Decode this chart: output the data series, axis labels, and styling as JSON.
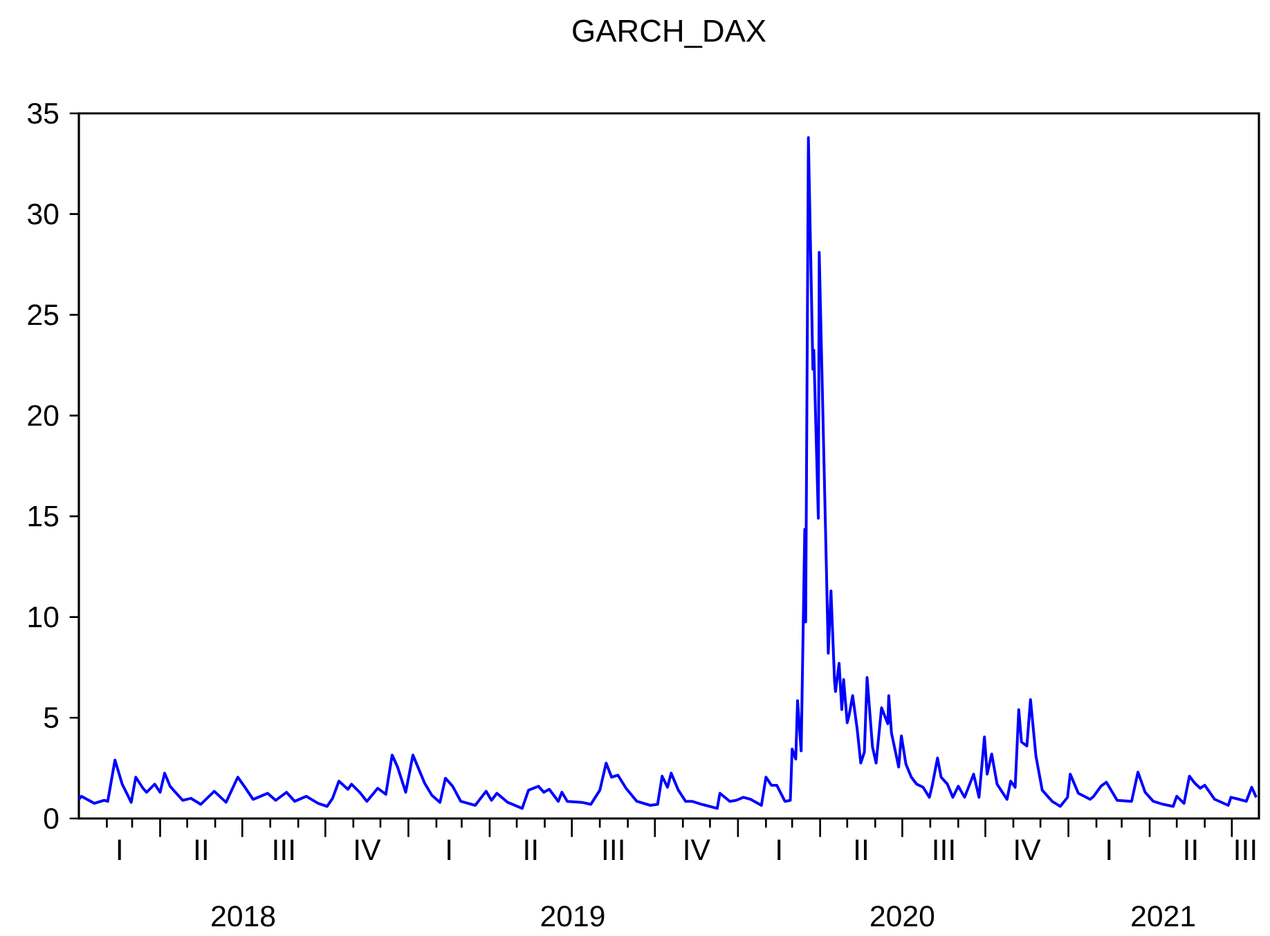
{
  "chart_data": {
    "type": "line",
    "title": "GARCH_DAX",
    "color": "#0000ff",
    "xlim": [
      "2018-01-01",
      "2021-07-31"
    ],
    "ylim": [
      0,
      35
    ],
    "yticks": [
      0,
      5,
      10,
      15,
      20,
      25,
      30,
      35
    ],
    "xticks": [
      {
        "value": "2018-02-01",
        "label": null
      },
      {
        "value": "2018-03-01",
        "label": null
      },
      {
        "value": "2018-04-01",
        "label": null
      },
      {
        "value": "2018-05-01",
        "label": null
      },
      {
        "value": "2018-06-01",
        "label": null
      },
      {
        "value": "2018-07-01",
        "label": null
      },
      {
        "value": "2018-08-01",
        "label": null
      },
      {
        "value": "2018-09-01",
        "label": null
      },
      {
        "value": "2018-10-01",
        "label": null
      },
      {
        "value": "2018-11-01",
        "label": null
      },
      {
        "value": "2018-12-01",
        "label": null
      },
      {
        "value": "2019-01-01",
        "label": null
      },
      {
        "value": "2019-02-01",
        "label": null
      },
      {
        "value": "2019-03-01",
        "label": null
      },
      {
        "value": "2019-04-01",
        "label": null
      },
      {
        "value": "2019-05-01",
        "label": null
      },
      {
        "value": "2019-06-01",
        "label": null
      },
      {
        "value": "2019-07-01",
        "label": null
      },
      {
        "value": "2019-08-01",
        "label": null
      },
      {
        "value": "2019-09-01",
        "label": null
      },
      {
        "value": "2019-10-01",
        "label": null
      },
      {
        "value": "2019-11-01",
        "label": null
      },
      {
        "value": "2019-12-01",
        "label": null
      },
      {
        "value": "2020-01-01",
        "label": null
      },
      {
        "value": "2020-02-01",
        "label": null
      },
      {
        "value": "2020-03-01",
        "label": null
      },
      {
        "value": "2020-04-01",
        "label": null
      },
      {
        "value": "2020-05-01",
        "label": null
      },
      {
        "value": "2020-06-01",
        "label": null
      },
      {
        "value": "2020-07-01",
        "label": null
      },
      {
        "value": "2020-08-01",
        "label": null
      },
      {
        "value": "2020-09-01",
        "label": null
      },
      {
        "value": "2020-10-01",
        "label": null
      },
      {
        "value": "2020-11-01",
        "label": null
      },
      {
        "value": "2020-12-01",
        "label": null
      },
      {
        "value": "2021-01-01",
        "label": null
      },
      {
        "value": "2021-02-01",
        "label": null
      },
      {
        "value": "2021-03-01",
        "label": null
      },
      {
        "value": "2021-04-01",
        "label": null
      },
      {
        "value": "2021-05-01",
        "label": null
      },
      {
        "value": "2021-06-01",
        "label": null
      },
      {
        "value": "2021-07-01",
        "label": null
      },
      {
        "value": "2018-07-02",
        "label": "2018"
      },
      {
        "value": "2019-07-02",
        "label": "2019"
      },
      {
        "value": "2020-07-01",
        "label": "2020"
      },
      {
        "value": "2021-04-16",
        "label": "2021"
      }
    ],
    "annotations": [
      "I",
      "II",
      "III",
      "IV",
      "I",
      "II",
      "III",
      "IV",
      "I",
      "II",
      "III",
      "IV",
      "I",
      "II",
      "III"
    ],
    "x": [
      "2018-01-01",
      "2018-01-04",
      "2018-01-18",
      "2018-01-29",
      "2018-02-02",
      "2018-02-10",
      "2018-02-18",
      "2018-02-28",
      "2018-03-05",
      "2018-03-13",
      "2018-03-17",
      "2018-03-26",
      "2018-04-01",
      "2018-04-06",
      "2018-04-12",
      "2018-04-26",
      "2018-05-05",
      "2018-05-16",
      "2018-05-31",
      "2018-06-13",
      "2018-06-26",
      "2018-07-04",
      "2018-07-13",
      "2018-07-29",
      "2018-08-07",
      "2018-08-19",
      "2018-08-28",
      "2018-09-10",
      "2018-09-23",
      "2018-10-03",
      "2018-10-09",
      "2018-10-16",
      "2018-10-26",
      "2018-10-30",
      "2018-11-08",
      "2018-11-16",
      "2018-11-28",
      "2018-12-07",
      "2018-12-14",
      "2018-12-20",
      "2018-12-29",
      "2019-01-06",
      "2019-01-12",
      "2019-01-19",
      "2019-01-27",
      "2019-02-05",
      "2019-02-11",
      "2019-02-19",
      "2019-02-28",
      "2019-03-16",
      "2019-03-28",
      "2019-04-03",
      "2019-04-09",
      "2019-04-21",
      "2019-05-07",
      "2019-05-14",
      "2019-05-25",
      "2019-05-31",
      "2019-06-06",
      "2019-06-16",
      "2019-06-20",
      "2019-06-26",
      "2019-07-12",
      "2019-07-22",
      "2019-08-01",
      "2019-08-08",
      "2019-08-14",
      "2019-08-21",
      "2019-08-30",
      "2019-09-11",
      "2019-09-26",
      "2019-10-04",
      "2019-10-09",
      "2019-10-15",
      "2019-10-19",
      "2019-10-27",
      "2019-11-04",
      "2019-11-11",
      "2019-11-22",
      "2019-12-09",
      "2019-12-12",
      "2019-12-23",
      "2019-12-30",
      "2020-01-07",
      "2020-01-15",
      "2020-01-27",
      "2020-02-01",
      "2020-02-07",
      "2020-02-13",
      "2020-02-22",
      "2020-02-28",
      "2020-03-01",
      "2020-03-05",
      "2020-03-07",
      "2020-03-11",
      "2020-03-15",
      "2020-03-16",
      "2020-03-19",
      "2020-03-24",
      "2020-03-25",
      "2020-03-30",
      "2020-03-31",
      "2020-04-08",
      "2020-04-10",
      "2020-04-13",
      "2020-04-17",
      "2020-04-18",
      "2020-04-22",
      "2020-04-25",
      "2020-04-27",
      "2020-05-01",
      "2020-05-03",
      "2020-05-07",
      "2020-05-12",
      "2020-05-16",
      "2020-05-20",
      "2020-05-23",
      "2020-05-29",
      "2020-06-02",
      "2020-06-08",
      "2020-06-15",
      "2020-06-16",
      "2020-06-19",
      "2020-06-27",
      "2020-06-30",
      "2020-07-05",
      "2020-07-11",
      "2020-07-17",
      "2020-07-24",
      "2020-07-31",
      "2020-08-03",
      "2020-08-09",
      "2020-08-13",
      "2020-08-20",
      "2020-08-26",
      "2020-09-01",
      "2020-09-08",
      "2020-09-18",
      "2020-09-24",
      "2020-09-30",
      "2020-10-03",
      "2020-10-08",
      "2020-10-14",
      "2020-10-25",
      "2020-10-29",
      "2020-11-03",
      "2020-11-07",
      "2020-11-10",
      "2020-11-16",
      "2020-11-20",
      "2020-11-26",
      "2020-12-03",
      "2020-12-14",
      "2020-12-23",
      "2020-12-31",
      "2021-01-03",
      "2021-01-12",
      "2021-01-25",
      "2021-01-29",
      "2021-02-06",
      "2021-02-12",
      "2021-02-24",
      "2021-03-12",
      "2021-03-19",
      "2021-03-27",
      "2021-04-05",
      "2021-04-16",
      "2021-04-27",
      "2021-05-01",
      "2021-05-09",
      "2021-05-15",
      "2021-05-21",
      "2021-05-27",
      "2021-06-01",
      "2021-06-12",
      "2021-06-27",
      "2021-06-30",
      "2021-07-09",
      "2021-07-17",
      "2021-07-23",
      "2021-07-28"
    ],
    "values": [
      0.96,
      1.1,
      0.75,
      0.9,
      0.85,
      2.9,
      1.7,
      0.8,
      2.05,
      1.5,
      1.3,
      1.7,
      1.3,
      2.25,
      1.6,
      0.9,
      1.0,
      0.7,
      1.35,
      0.8,
      2.05,
      1.55,
      0.95,
      1.25,
      0.9,
      1.3,
      0.85,
      1.1,
      0.75,
      0.6,
      1.0,
      1.85,
      1.45,
      1.7,
      1.3,
      0.85,
      1.5,
      1.2,
      3.15,
      2.55,
      1.3,
      3.15,
      2.5,
      1.75,
      1.15,
      0.8,
      2.0,
      1.6,
      0.85,
      0.65,
      1.35,
      0.9,
      1.25,
      0.8,
      0.5,
      1.4,
      1.6,
      1.3,
      1.45,
      0.85,
      1.3,
      0.85,
      0.8,
      0.7,
      1.4,
      2.75,
      2.05,
      2.15,
      1.5,
      0.85,
      0.65,
      0.7,
      2.1,
      1.55,
      2.25,
      1.4,
      0.85,
      0.85,
      0.7,
      0.5,
      1.25,
      0.85,
      0.9,
      1.05,
      0.95,
      0.65,
      2.05,
      1.65,
      1.65,
      0.85,
      0.9,
      3.45,
      2.95,
      5.85,
      3.35,
      14.35,
      9.75,
      33.8,
      22.3,
      23.25,
      14.9,
      28.1,
      12.3,
      8.2,
      11.3,
      6.8,
      6.3,
      7.7,
      5.4,
      6.9,
      4.75,
      5.1,
      6.1,
      4.45,
      2.75,
      3.3,
      7.0,
      3.55,
      2.75,
      5.5,
      4.7,
      6.1,
      4.25,
      2.55,
      4.1,
      2.7,
      2.05,
      1.7,
      1.55,
      1.05,
      1.6,
      3.0,
      2.05,
      1.7,
      1.05,
      1.6,
      1.05,
      2.2,
      1.05,
      4.05,
      2.2,
      3.2,
      1.7,
      0.95,
      1.85,
      1.55,
      5.4,
      3.8,
      3.6,
      5.9,
      3.1,
      1.4,
      0.85,
      0.6,
      1.05,
      2.2,
      1.25,
      0.95,
      1.1,
      1.6,
      1.8,
      0.9,
      0.85,
      2.3,
      1.3,
      0.85,
      0.7,
      0.6,
      1.1,
      0.75,
      2.1,
      1.75,
      1.5,
      1.65,
      0.95,
      0.65,
      1.05,
      0.95,
      0.85,
      1.55,
      1.05
    ]
  }
}
